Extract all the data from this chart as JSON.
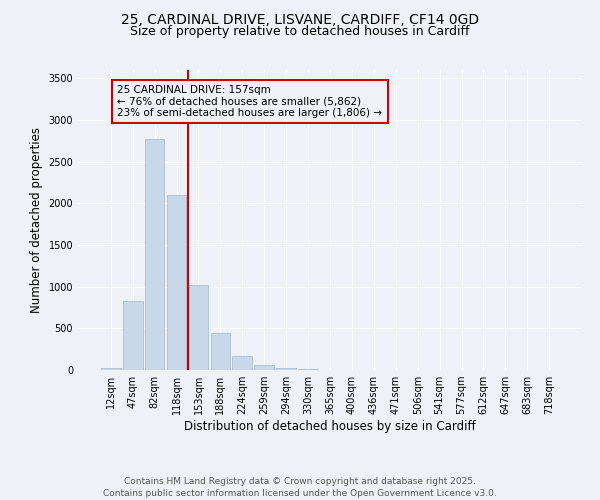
{
  "title_line1": "25, CARDINAL DRIVE, LISVANE, CARDIFF, CF14 0GD",
  "title_line2": "Size of property relative to detached houses in Cardiff",
  "xlabel": "Distribution of detached houses by size in Cardiff",
  "ylabel": "Number of detached properties",
  "categories": [
    "12sqm",
    "47sqm",
    "82sqm",
    "118sqm",
    "153sqm",
    "188sqm",
    "224sqm",
    "259sqm",
    "294sqm",
    "330sqm",
    "365sqm",
    "400sqm",
    "436sqm",
    "471sqm",
    "506sqm",
    "541sqm",
    "577sqm",
    "612sqm",
    "647sqm",
    "683sqm",
    "718sqm"
  ],
  "values": [
    20,
    830,
    2770,
    2100,
    1020,
    450,
    170,
    60,
    30,
    10,
    5,
    2,
    2,
    1,
    0,
    0,
    0,
    0,
    0,
    0,
    0
  ],
  "bar_color": "#c8d8e8",
  "bar_edge_color": "#a0b8cc",
  "vline_bin_index": 4,
  "vline_color": "#cc0000",
  "annotation_text": "25 CARDINAL DRIVE: 157sqm\n← 76% of detached houses are smaller (5,862)\n23% of semi-detached houses are larger (1,806) →",
  "annotation_box_edgecolor": "#cc0000",
  "annotation_text_color": "#000000",
  "ylim": [
    0,
    3600
  ],
  "yticks": [
    0,
    500,
    1000,
    1500,
    2000,
    2500,
    3000,
    3500
  ],
  "background_color": "#eef2f7",
  "grid_color": "#ffffff",
  "footer_line1": "Contains HM Land Registry data © Crown copyright and database right 2025.",
  "footer_line2": "Contains public sector information licensed under the Open Government Licence v3.0.",
  "title1_fontsize": 10,
  "title2_fontsize": 9,
  "axis_label_fontsize": 8.5,
  "tick_fontsize": 7,
  "annotation_fontsize": 7.5,
  "footer_fontsize": 6.5
}
